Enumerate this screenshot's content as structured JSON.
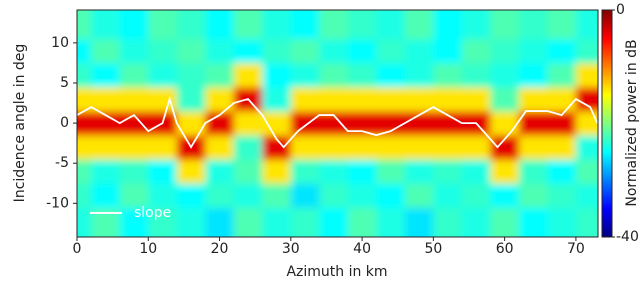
{
  "chart_data": {
    "type": "heatmap",
    "xlabel": "Azimuth in km",
    "ylabel": "Incidence angle in deg",
    "colorbar_label": "Normalized power in dB",
    "colormap": "jet",
    "zlim": [
      -40,
      0
    ],
    "zticks": [
      -40,
      0
    ],
    "xlim": [
      0,
      73.1
    ],
    "ylim": [
      -14.2,
      14.1
    ],
    "xticks": [
      0,
      10,
      20,
      30,
      40,
      50,
      60,
      70
    ],
    "yticks": [
      -10,
      -5,
      0,
      5,
      10
    ],
    "legend": "lower left",
    "x": [
      0,
      4,
      8,
      12,
      16,
      20,
      24,
      28,
      32,
      36,
      40,
      44,
      48,
      52,
      56,
      60,
      64,
      68,
      72
    ],
    "y": [
      -12,
      -9,
      -6,
      -3,
      0,
      3,
      6,
      9,
      12
    ],
    "z": [
      [
        -24,
        -22,
        -25,
        -23,
        -24,
        -26,
        -22,
        -24,
        -23,
        -25,
        -22,
        -24,
        -26,
        -23,
        -24,
        -22,
        -25,
        -24,
        -23
      ],
      [
        -23,
        -25,
        -22,
        -24,
        -25,
        -23,
        -24,
        -22,
        -26,
        -23,
        -24,
        -25,
        -22,
        -24,
        -23,
        -25,
        -22,
        -23,
        -24
      ],
      [
        -22,
        -24,
        -23,
        -25,
        -14,
        -24,
        -22,
        -14,
        -23,
        -24,
        -25,
        -22,
        -24,
        -23,
        -24,
        -14,
        -23,
        -25,
        -22
      ],
      [
        -14,
        -14,
        -14,
        -14,
        -4,
        -14,
        -23,
        -4,
        -14,
        -14,
        -14,
        -14,
        -14,
        -14,
        -14,
        -4,
        -14,
        -14,
        -24
      ],
      [
        -4,
        -4,
        -4,
        -4,
        -14,
        -4,
        -14,
        -14,
        -4,
        -4,
        -4,
        -4,
        -4,
        -4,
        -4,
        -14,
        -4,
        -4,
        -14
      ],
      [
        -14,
        -14,
        -14,
        -14,
        -23,
        -14,
        -4,
        -24,
        -14,
        -14,
        -14,
        -14,
        -14,
        -14,
        -14,
        -22,
        -14,
        -14,
        -4
      ],
      [
        -23,
        -25,
        -22,
        -24,
        -23,
        -22,
        -14,
        -25,
        -24,
        -22,
        -23,
        -25,
        -24,
        -22,
        -23,
        -24,
        -25,
        -22,
        -14
      ],
      [
        -25,
        -22,
        -24,
        -23,
        -22,
        -24,
        -25,
        -23,
        -22,
        -24,
        -25,
        -23,
        -24,
        -25,
        -22,
        -23,
        -24,
        -25,
        -23
      ],
      [
        -22,
        -24,
        -25,
        -22,
        -23,
        -25,
        -22,
        -24,
        -25,
        -22,
        -23,
        -24,
        -22,
        -25,
        -24,
        -22,
        -23,
        -22,
        -24
      ]
    ],
    "series": [
      {
        "name": "slope",
        "color": "#ffffff",
        "x": [
          0,
          2,
          4,
          6,
          8,
          10,
          12,
          13,
          14,
          16,
          18,
          20,
          22,
          24,
          26,
          28,
          29,
          31,
          34,
          36,
          38,
          40,
          42,
          44,
          46,
          48,
          50,
          52,
          54,
          56,
          58,
          59,
          61,
          63,
          66,
          68,
          70,
          72,
          73
        ],
        "values": [
          1,
          2,
          1,
          0,
          1,
          -1,
          0,
          3,
          0,
          -3,
          0,
          1,
          2.5,
          3,
          1,
          -2,
          -3,
          -1,
          1,
          1,
          -1,
          -1,
          -1.5,
          -1,
          0,
          1,
          2,
          1,
          0,
          0,
          -2,
          -3,
          -1,
          1.5,
          1.5,
          1,
          3,
          2,
          0
        ]
      }
    ]
  }
}
